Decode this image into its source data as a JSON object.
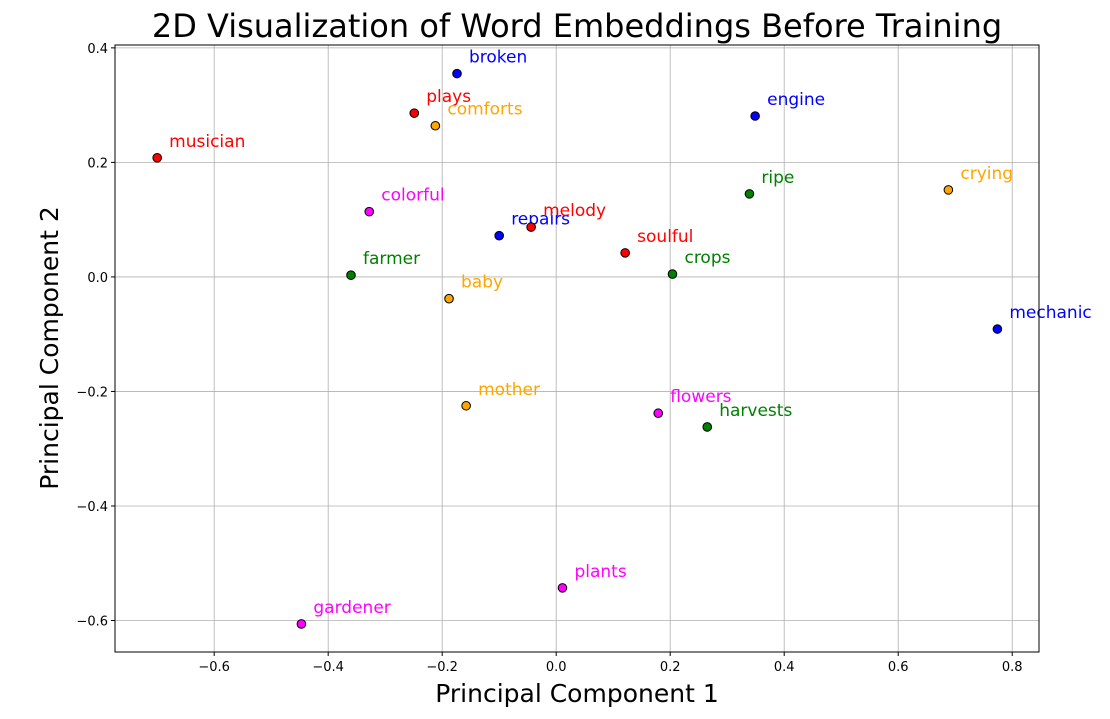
{
  "chart_data": {
    "type": "scatter",
    "title": "2D Visualization of Word Embeddings Before Training",
    "xlabel": "Principal Component 1",
    "ylabel": "Principal Component 2",
    "xlim": [
      -0.774,
      0.847
    ],
    "ylim": [
      -0.655,
      0.405
    ],
    "xticks": [
      -0.6,
      -0.4,
      -0.2,
      0.0,
      0.2,
      0.4,
      0.6,
      0.8
    ],
    "xtick_labels": [
      "−0.6",
      "−0.4",
      "−0.2",
      "0.0",
      "0.2",
      "0.4",
      "0.6",
      "0.8"
    ],
    "yticks": [
      0.4,
      0.2,
      0.0,
      -0.2,
      -0.4,
      -0.6
    ],
    "ytick_labels": [
      "0.4",
      "0.2",
      "0.0",
      "−0.2",
      "−0.4",
      "−0.6"
    ],
    "grid": true,
    "colors": {
      "blue": "#0000ff",
      "red": "#ff0000",
      "orange": "#ffa500",
      "green": "#008000",
      "magenta": "#ff00ff"
    },
    "points": [
      {
        "label": "broken",
        "x": -0.174,
        "y": 0.355,
        "color": "blue"
      },
      {
        "label": "plays",
        "x": -0.249,
        "y": 0.286,
        "color": "red"
      },
      {
        "label": "comforts",
        "x": -0.212,
        "y": 0.264,
        "color": "orange"
      },
      {
        "label": "engine",
        "x": 0.349,
        "y": 0.281,
        "color": "blue"
      },
      {
        "label": "musician",
        "x": -0.7,
        "y": 0.208,
        "color": "red"
      },
      {
        "label": "ripe",
        "x": 0.339,
        "y": 0.145,
        "color": "green"
      },
      {
        "label": "crying",
        "x": 0.688,
        "y": 0.152,
        "color": "orange"
      },
      {
        "label": "colorful",
        "x": -0.328,
        "y": 0.114,
        "color": "magenta"
      },
      {
        "label": "repairs",
        "x": -0.1,
        "y": 0.072,
        "color": "blue"
      },
      {
        "label": "melody",
        "x": -0.044,
        "y": 0.087,
        "color": "red"
      },
      {
        "label": "soulful",
        "x": 0.121,
        "y": 0.042,
        "color": "red"
      },
      {
        "label": "farmer",
        "x": -0.36,
        "y": 0.003,
        "color": "green"
      },
      {
        "label": "crops",
        "x": 0.204,
        "y": 0.005,
        "color": "green"
      },
      {
        "label": "baby",
        "x": -0.188,
        "y": -0.038,
        "color": "orange"
      },
      {
        "label": "mechanic",
        "x": 0.774,
        "y": -0.091,
        "color": "blue"
      },
      {
        "label": "mother",
        "x": -0.158,
        "y": -0.225,
        "color": "orange"
      },
      {
        "label": "flowers",
        "x": 0.179,
        "y": -0.238,
        "color": "magenta"
      },
      {
        "label": "harvests",
        "x": 0.265,
        "y": -0.262,
        "color": "green"
      },
      {
        "label": "plants",
        "x": 0.011,
        "y": -0.543,
        "color": "magenta"
      },
      {
        "label": "gardener",
        "x": -0.447,
        "y": -0.606,
        "color": "magenta"
      }
    ]
  }
}
